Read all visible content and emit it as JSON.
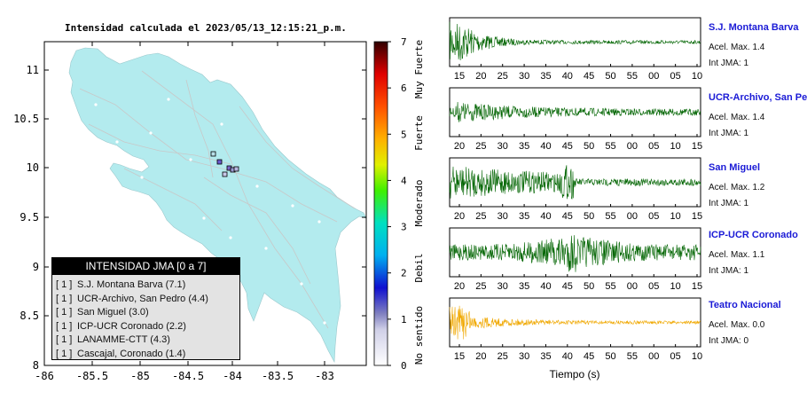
{
  "map": {
    "title": "Intensidad calculada el 2023/05/13_12:15:21_p.m.",
    "lat_ticks": [
      "11",
      "10.5",
      "10",
      "9.5",
      "9",
      "8.5",
      "8"
    ],
    "lon_ticks": [
      "-86",
      "-85.5",
      "-85",
      "-84.5",
      "-84",
      "-83.5",
      "-83"
    ],
    "colorbar_ticks": [
      "7",
      "6",
      "5",
      "4",
      "3",
      "2",
      "1",
      "0"
    ],
    "colorbar_labels": [
      "Muy Fuerte",
      "Fuerte",
      "Moderado",
      "Debil",
      "No sentido"
    ],
    "land_color": "#b3ebee",
    "sea_color": "#ffffff"
  },
  "legend": {
    "title": "INTENSIDAD JMA [0 a 7]",
    "rows": [
      {
        "level": "[ 1 ]",
        "station": "S.J. Montana Barva (7.1)"
      },
      {
        "level": "[ 1 ]",
        "station": "UCR-Archivo, San Pedro (4.4)"
      },
      {
        "level": "[ 1 ]",
        "station": "San Miguel (3.0)"
      },
      {
        "level": "[ 1 ]",
        "station": "ICP-UCR Coronado (2.2)"
      },
      {
        "level": "[ 1 ]",
        "station": "LANAMME-CTT (4.3)"
      },
      {
        "level": "[ 1 ]",
        "station": "Cascajal, Coronado (1.4)"
      }
    ]
  },
  "stations": [
    {
      "name": "S.J. Montana Barva",
      "acc": "Acel. Max. 1.4",
      "jma": "Int JMA: 1",
      "color": "#006400",
      "ticks": [
        "15",
        "20",
        "25",
        "30",
        "35",
        "40",
        "45",
        "50",
        "55",
        "00",
        "05",
        "10"
      ]
    },
    {
      "name": "UCR-Archivo, San Pedro",
      "acc": "Acel. Max. 1.4",
      "jma": "Int JMA: 1",
      "color": "#006400",
      "ticks": [
        "20",
        "25",
        "30",
        "35",
        "40",
        "45",
        "50",
        "55",
        "00",
        "05",
        "10",
        "15"
      ]
    },
    {
      "name": "San Miguel",
      "acc": "Acel. Max. 1.2",
      "jma": "Int JMA: 1",
      "color": "#006400",
      "ticks": [
        "20",
        "25",
        "30",
        "35",
        "40",
        "45",
        "50",
        "55",
        "00",
        "05",
        "10",
        "15"
      ]
    },
    {
      "name": "ICP-UCR Coronado",
      "acc": "Acel. Max. 1.1",
      "jma": "Int JMA: 1",
      "color": "#006400",
      "ticks": [
        "20",
        "25",
        "30",
        "35",
        "40",
        "45",
        "50",
        "55",
        "00",
        "05",
        "10",
        "15"
      ]
    },
    {
      "name": "Teatro Nacional",
      "acc": "Acel. Max. 0.0",
      "jma": "Int JMA: 0",
      "color": "#f0a800",
      "ticks": [
        "15",
        "20",
        "25",
        "30",
        "35",
        "40",
        "45",
        "50",
        "55",
        "00",
        "05",
        "10"
      ]
    }
  ],
  "seismo_xlabel": "Tiempo (s)"
}
